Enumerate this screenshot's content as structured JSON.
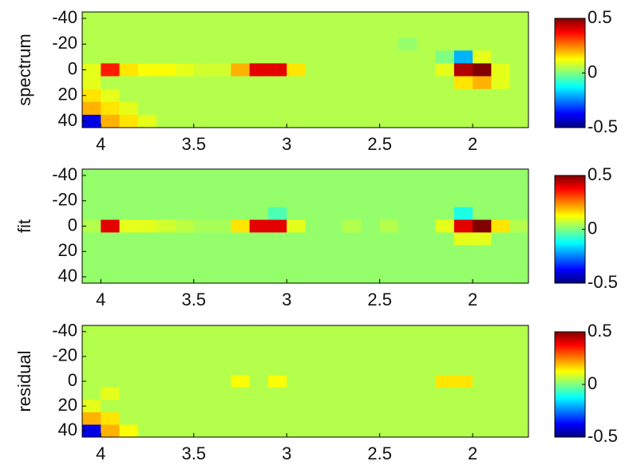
{
  "chart_data": [
    {
      "type": "heatmap",
      "ylabel": "spectrum",
      "x": [
        4.05,
        3.95,
        3.85,
        3.75,
        3.65,
        3.55,
        3.45,
        3.35,
        3.25,
        3.15,
        3.05,
        2.95,
        2.85,
        2.75,
        2.65,
        2.55,
        2.45,
        2.35,
        2.25,
        2.15,
        2.05,
        1.95,
        1.85,
        1.75
      ],
      "y": [
        -40,
        -30,
        -20,
        -10,
        0,
        10,
        20,
        30,
        40
      ],
      "z": [
        [
          0.05,
          0.05,
          0.05,
          0.05,
          0.05,
          0.05,
          0.05,
          0.05,
          0.05,
          0.05,
          0.05,
          0.05,
          0.05,
          0.05,
          0.05,
          0.05,
          0.05,
          0.05,
          0.05,
          0.05,
          0.05,
          0.05,
          0.05,
          0.05
        ],
        [
          0.05,
          0.05,
          0.05,
          0.05,
          0.05,
          0.05,
          0.05,
          0.05,
          0.05,
          0.05,
          0.05,
          0.05,
          0.05,
          0.05,
          0.05,
          0.05,
          0.05,
          0.05,
          0.05,
          0.05,
          0.05,
          0.05,
          0.05,
          0.05
        ],
        [
          0.05,
          0.05,
          0.05,
          0.05,
          0.05,
          0.05,
          0.05,
          0.05,
          0.05,
          0.05,
          0.05,
          0.05,
          0.05,
          0.05,
          0.05,
          0.05,
          0.05,
          0.02,
          0.05,
          0.05,
          0.05,
          0.05,
          0.05,
          0.05
        ],
        [
          0.05,
          0.05,
          0.05,
          0.05,
          0.05,
          0.05,
          0.05,
          0.05,
          0.05,
          0.05,
          0.05,
          0.05,
          0.05,
          0.05,
          0.05,
          0.05,
          0.05,
          0.05,
          0.05,
          0,
          -0.2,
          0.1,
          0.05,
          0.05
        ],
        [
          0.1,
          0.35,
          0.15,
          0.12,
          0.12,
          0.1,
          0.08,
          0.08,
          0.2,
          0.4,
          0.4,
          0.15,
          0.05,
          0.05,
          0.05,
          0.05,
          0.05,
          0.05,
          0.05,
          0.1,
          0.45,
          0.5,
          0.1,
          0.05
        ],
        [
          0.1,
          0.05,
          0.05,
          0.05,
          0.05,
          0.05,
          0.05,
          0.05,
          0.05,
          0.05,
          0.05,
          0.05,
          0.05,
          0.05,
          0.05,
          0.05,
          0.05,
          0.05,
          0.05,
          0.05,
          0.15,
          0.2,
          0.1,
          0.05
        ],
        [
          0.15,
          0.1,
          0.05,
          0.05,
          0.05,
          0.05,
          0.05,
          0.05,
          0.05,
          0.05,
          0.05,
          0.05,
          0.05,
          0.05,
          0.05,
          0.05,
          0.05,
          0.05,
          0.05,
          0.05,
          0.05,
          0.05,
          0.05,
          0.05
        ],
        [
          0.2,
          0.15,
          0.1,
          0.05,
          0.05,
          0.05,
          0.05,
          0.05,
          0.05,
          0.05,
          0.05,
          0.05,
          0.05,
          0.05,
          0.05,
          0.05,
          0.05,
          0.05,
          0.05,
          0.05,
          0.05,
          0.05,
          0.05,
          0.05
        ],
        [
          -0.4,
          0.2,
          0.15,
          0.1,
          0.05,
          0.05,
          0.05,
          0.05,
          0.05,
          0.05,
          0.05,
          0.05,
          0.05,
          0.05,
          0.05,
          0.05,
          0.05,
          0.05,
          0.05,
          0.05,
          0.05,
          0.05,
          0.05,
          0.05
        ]
      ],
      "xlim": [
        4.1,
        1.7
      ],
      "ylim": [
        45,
        -45
      ],
      "xticks": [
        4,
        3.5,
        3,
        2.5,
        2
      ],
      "yticks": [
        -40,
        -20,
        0,
        20,
        40
      ],
      "clim": [
        -0.5,
        0.5
      ],
      "cticks": [
        0.5,
        0,
        -0.5
      ]
    },
    {
      "type": "heatmap",
      "ylabel": "fit",
      "x": [
        4.05,
        3.95,
        3.85,
        3.75,
        3.65,
        3.55,
        3.45,
        3.35,
        3.25,
        3.15,
        3.05,
        2.95,
        2.85,
        2.75,
        2.65,
        2.55,
        2.45,
        2.35,
        2.25,
        2.15,
        2.05,
        1.95,
        1.85,
        1.75
      ],
      "y": [
        -40,
        -30,
        -20,
        -10,
        0,
        10,
        20,
        30,
        40
      ],
      "z": [
        [
          0.02,
          0.02,
          0.02,
          0.02,
          0.02,
          0.02,
          0.02,
          0.02,
          0.02,
          0.02,
          0.02,
          0.02,
          0.02,
          0.02,
          0.02,
          0.02,
          0.02,
          0.02,
          0.02,
          0.02,
          0.02,
          0.02,
          0.02,
          0.02
        ],
        [
          0.02,
          0.02,
          0.02,
          0.02,
          0.02,
          0.02,
          0.02,
          0.02,
          0.02,
          0.02,
          0.02,
          0.02,
          0.02,
          0.02,
          0.02,
          0.02,
          0.02,
          0.02,
          0.02,
          0.02,
          0.02,
          0.02,
          0.02,
          0.02
        ],
        [
          0.02,
          0.02,
          0.02,
          0.02,
          0.02,
          0.02,
          0.02,
          0.02,
          0.02,
          0.02,
          0.02,
          0.02,
          0.02,
          0.02,
          0.02,
          0.02,
          0.02,
          0.02,
          0.02,
          0.02,
          0.02,
          0.02,
          0.02,
          0.02
        ],
        [
          0.02,
          0.02,
          0.02,
          0.02,
          0.02,
          0.02,
          0.02,
          0.02,
          0.02,
          0.02,
          -0.05,
          0.02,
          0.02,
          0.02,
          0.02,
          0.02,
          0.02,
          0.02,
          0.02,
          0.02,
          -0.1,
          0.02,
          0.02,
          0.02
        ],
        [
          0.05,
          0.4,
          0.1,
          0.1,
          0.08,
          0.06,
          0.04,
          0.04,
          0.15,
          0.4,
          0.4,
          0.1,
          0.02,
          0.02,
          0.05,
          0.02,
          0.05,
          0.02,
          0.02,
          0.1,
          0.4,
          0.5,
          0.15,
          0.05
        ],
        [
          0.02,
          0.02,
          0.02,
          0.02,
          0.02,
          0.02,
          0.02,
          0.02,
          0.02,
          0.02,
          0.02,
          0.02,
          0.02,
          0.02,
          0.02,
          0.02,
          0.02,
          0.02,
          0.02,
          0.02,
          0.1,
          0.1,
          0.02,
          0.02
        ],
        [
          0.02,
          0.02,
          0.02,
          0.02,
          0.02,
          0.02,
          0.02,
          0.02,
          0.02,
          0.02,
          0.02,
          0.02,
          0.02,
          0.02,
          0.02,
          0.02,
          0.02,
          0.02,
          0.02,
          0.02,
          0.02,
          0.02,
          0.02,
          0.02
        ],
        [
          0.02,
          0.02,
          0.02,
          0.02,
          0.02,
          0.02,
          0.02,
          0.02,
          0.02,
          0.02,
          0.02,
          0.02,
          0.02,
          0.02,
          0.02,
          0.02,
          0.02,
          0.02,
          0.02,
          0.02,
          0.02,
          0.02,
          0.02,
          0.02
        ],
        [
          0.02,
          0.02,
          0.02,
          0.02,
          0.02,
          0.02,
          0.02,
          0.02,
          0.02,
          0.02,
          0.02,
          0.02,
          0.02,
          0.02,
          0.02,
          0.02,
          0.02,
          0.02,
          0.02,
          0.02,
          0.02,
          0.02,
          0.02,
          0.02
        ]
      ],
      "xlim": [
        4.1,
        1.7
      ],
      "ylim": [
        45,
        -45
      ],
      "xticks": [
        4,
        3.5,
        3,
        2.5,
        2
      ],
      "yticks": [
        -40,
        -20,
        0,
        20,
        40
      ],
      "clim": [
        -0.5,
        0.5
      ],
      "cticks": [
        0.5,
        0,
        -0.5
      ]
    },
    {
      "type": "heatmap",
      "ylabel": "residual",
      "x": [
        4.05,
        3.95,
        3.85,
        3.75,
        3.65,
        3.55,
        3.45,
        3.35,
        3.25,
        3.15,
        3.05,
        2.95,
        2.85,
        2.75,
        2.65,
        2.55,
        2.45,
        2.35,
        2.25,
        2.15,
        2.05,
        1.95,
        1.85,
        1.75
      ],
      "y": [
        -40,
        -30,
        -20,
        -10,
        0,
        10,
        20,
        30,
        40
      ],
      "z": [
        [
          0.05,
          0.05,
          0.05,
          0.05,
          0.05,
          0.05,
          0.05,
          0.05,
          0.05,
          0.05,
          0.05,
          0.05,
          0.05,
          0.05,
          0.05,
          0.05,
          0.05,
          0.05,
          0.05,
          0.05,
          0.05,
          0.05,
          0.05,
          0.05
        ],
        [
          0.05,
          0.05,
          0.05,
          0.05,
          0.05,
          0.05,
          0.05,
          0.05,
          0.05,
          0.05,
          0.05,
          0.05,
          0.05,
          0.05,
          0.05,
          0.05,
          0.05,
          0.05,
          0.05,
          0.05,
          0.05,
          0.05,
          0.05,
          0.05
        ],
        [
          0.05,
          0.05,
          0.05,
          0.05,
          0.05,
          0.05,
          0.05,
          0.05,
          0.05,
          0.05,
          0.05,
          0.05,
          0.05,
          0.05,
          0.05,
          0.05,
          0.05,
          0.05,
          0.05,
          0.05,
          0.05,
          0.05,
          0.05,
          0.05
        ],
        [
          0.05,
          0.05,
          0.05,
          0.05,
          0.05,
          0.05,
          0.05,
          0.05,
          0.05,
          0.05,
          0.05,
          0.05,
          0.05,
          0.05,
          0.05,
          0.05,
          0.05,
          0.05,
          0.05,
          0.05,
          0.05,
          0.05,
          0.05,
          0.05
        ],
        [
          0.05,
          0.05,
          0.05,
          0.05,
          0.05,
          0.05,
          0.05,
          0.05,
          0.12,
          0.05,
          0.12,
          0.05,
          0.05,
          0.05,
          0.05,
          0.05,
          0.05,
          0.05,
          0.05,
          0.15,
          0.15,
          0.05,
          0.05,
          0.05
        ],
        [
          0.05,
          0.1,
          0.05,
          0.05,
          0.05,
          0.05,
          0.05,
          0.05,
          0.05,
          0.05,
          0.05,
          0.05,
          0.05,
          0.05,
          0.05,
          0.05,
          0.05,
          0.05,
          0.05,
          0.05,
          0.05,
          0.05,
          0.05,
          0.05
        ],
        [
          0.1,
          0.05,
          0.05,
          0.05,
          0.05,
          0.05,
          0.05,
          0.05,
          0.05,
          0.05,
          0.05,
          0.05,
          0.05,
          0.05,
          0.05,
          0.05,
          0.05,
          0.05,
          0.05,
          0.05,
          0.05,
          0.05,
          0.05,
          0.05
        ],
        [
          0.2,
          0.15,
          0.05,
          0.05,
          0.05,
          0.05,
          0.05,
          0.05,
          0.05,
          0.05,
          0.05,
          0.05,
          0.05,
          0.05,
          0.05,
          0.05,
          0.05,
          0.05,
          0.05,
          0.05,
          0.05,
          0.05,
          0.05,
          0.05
        ],
        [
          -0.4,
          0.2,
          0.12,
          0.05,
          0.05,
          0.05,
          0.05,
          0.05,
          0.05,
          0.05,
          0.05,
          0.05,
          0.05,
          0.05,
          0.05,
          0.05,
          0.05,
          0.05,
          0.05,
          0.05,
          0.05,
          0.05,
          0.05,
          0.05
        ]
      ],
      "xlim": [
        4.1,
        1.7
      ],
      "ylim": [
        45,
        -45
      ],
      "xticks": [
        4,
        3.5,
        3,
        2.5,
        2
      ],
      "yticks": [
        -40,
        -20,
        0,
        20,
        40
      ],
      "clim": [
        -0.5,
        0.5
      ],
      "cticks": [
        0.5,
        0,
        -0.5
      ]
    }
  ]
}
